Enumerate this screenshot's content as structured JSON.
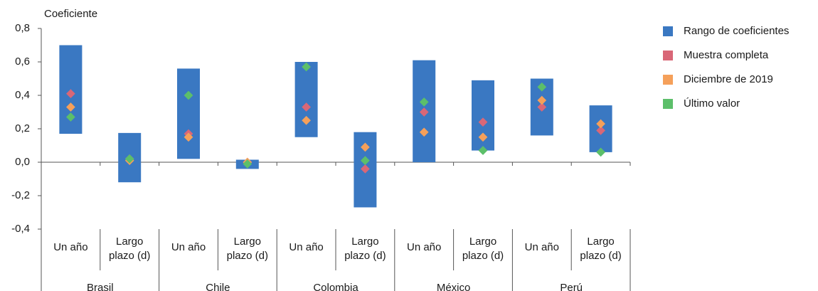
{
  "chart_data": {
    "type": "range-dot",
    "y_label": "Coeficiente",
    "groups": [
      "Brasil",
      "Chile",
      "Colombia",
      "México",
      "Perú"
    ],
    "categories": [
      [
        "Un año"
      ],
      [
        "Largo",
        "plazo (d)"
      ],
      [
        "Un año"
      ],
      [
        "Largo",
        "plazo (d)"
      ],
      [
        "Un año"
      ],
      [
        "Largo",
        "plazo (d)"
      ],
      [
        "Un año"
      ],
      [
        "Largo",
        "plazo (d)"
      ],
      [
        "Un año"
      ],
      [
        "Largo",
        "plazo (d)"
      ]
    ],
    "range": {
      "name": "Rango de coeficientes",
      "color": "#3a78c2",
      "low": [
        0.17,
        -0.12,
        0.02,
        -0.04,
        0.15,
        -0.27,
        0.0,
        0.07,
        0.16,
        0.06
      ],
      "high": [
        0.7,
        0.175,
        0.56,
        0.015,
        0.6,
        0.18,
        0.61,
        0.49,
        0.5,
        0.34
      ]
    },
    "series": [
      {
        "name": "Muestra completa",
        "color": "#d96777",
        "values": [
          0.41,
          0.02,
          0.17,
          0.0,
          0.33,
          -0.04,
          0.3,
          0.24,
          0.33,
          0.19
        ]
      },
      {
        "name": "Diciembre de 2019",
        "color": "#f5a05a",
        "values": [
          0.33,
          0.01,
          0.15,
          0.0,
          0.25,
          0.09,
          0.18,
          0.15,
          0.37,
          0.23
        ]
      },
      {
        "name": "Último valor",
        "color": "#5cbf6a",
        "values": [
          0.27,
          0.02,
          0.4,
          -0.01,
          0.57,
          0.01,
          0.36,
          0.07,
          0.45,
          0.06
        ]
      }
    ],
    "ylim": [
      -0.4,
      0.8
    ],
    "yticks": [
      {
        "value": 0.8,
        "label": "0,8"
      },
      {
        "value": 0.6,
        "label": "0,6"
      },
      {
        "value": 0.4,
        "label": "0,4"
      },
      {
        "value": 0.2,
        "label": "0,2"
      },
      {
        "value": 0,
        "label": "0,0"
      },
      {
        "value": -0.2,
        "label": "-0,2"
      },
      {
        "value": -0.4,
        "label": "-0,4"
      }
    ]
  }
}
